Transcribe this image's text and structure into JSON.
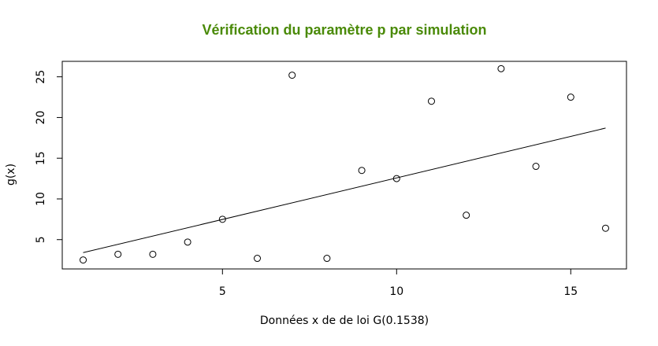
{
  "chart_data": {
    "type": "scatter",
    "title": "Vérification du paramètre p par simulation",
    "title_color": "#4a8a08",
    "xlabel": "Données x de de loi G(0.1538)",
    "ylabel": "g(x)",
    "xlim": [
      0.4,
      16.6
    ],
    "ylim": [
      1.4,
      26.9
    ],
    "xticks": [
      5,
      10,
      15
    ],
    "yticks": [
      5,
      10,
      15,
      20,
      25
    ],
    "grid": false,
    "legend": "none",
    "points": [
      {
        "x": 1,
        "y": 2.5
      },
      {
        "x": 2,
        "y": 3.2
      },
      {
        "x": 3,
        "y": 3.2
      },
      {
        "x": 4,
        "y": 4.7
      },
      {
        "x": 5,
        "y": 7.5
      },
      {
        "x": 6,
        "y": 2.7
      },
      {
        "x": 7,
        "y": 25.2
      },
      {
        "x": 8,
        "y": 2.7
      },
      {
        "x": 9,
        "y": 13.5
      },
      {
        "x": 10,
        "y": 12.5
      },
      {
        "x": 11,
        "y": 22.0
      },
      {
        "x": 12,
        "y": 8.0
      },
      {
        "x": 13,
        "y": 26.0
      },
      {
        "x": 14,
        "y": 14.0
      },
      {
        "x": 15,
        "y": 22.5
      },
      {
        "x": 16,
        "y": 6.4
      }
    ],
    "fit_line": {
      "x": [
        1,
        16
      ],
      "y": [
        3.4,
        18.7
      ]
    }
  }
}
